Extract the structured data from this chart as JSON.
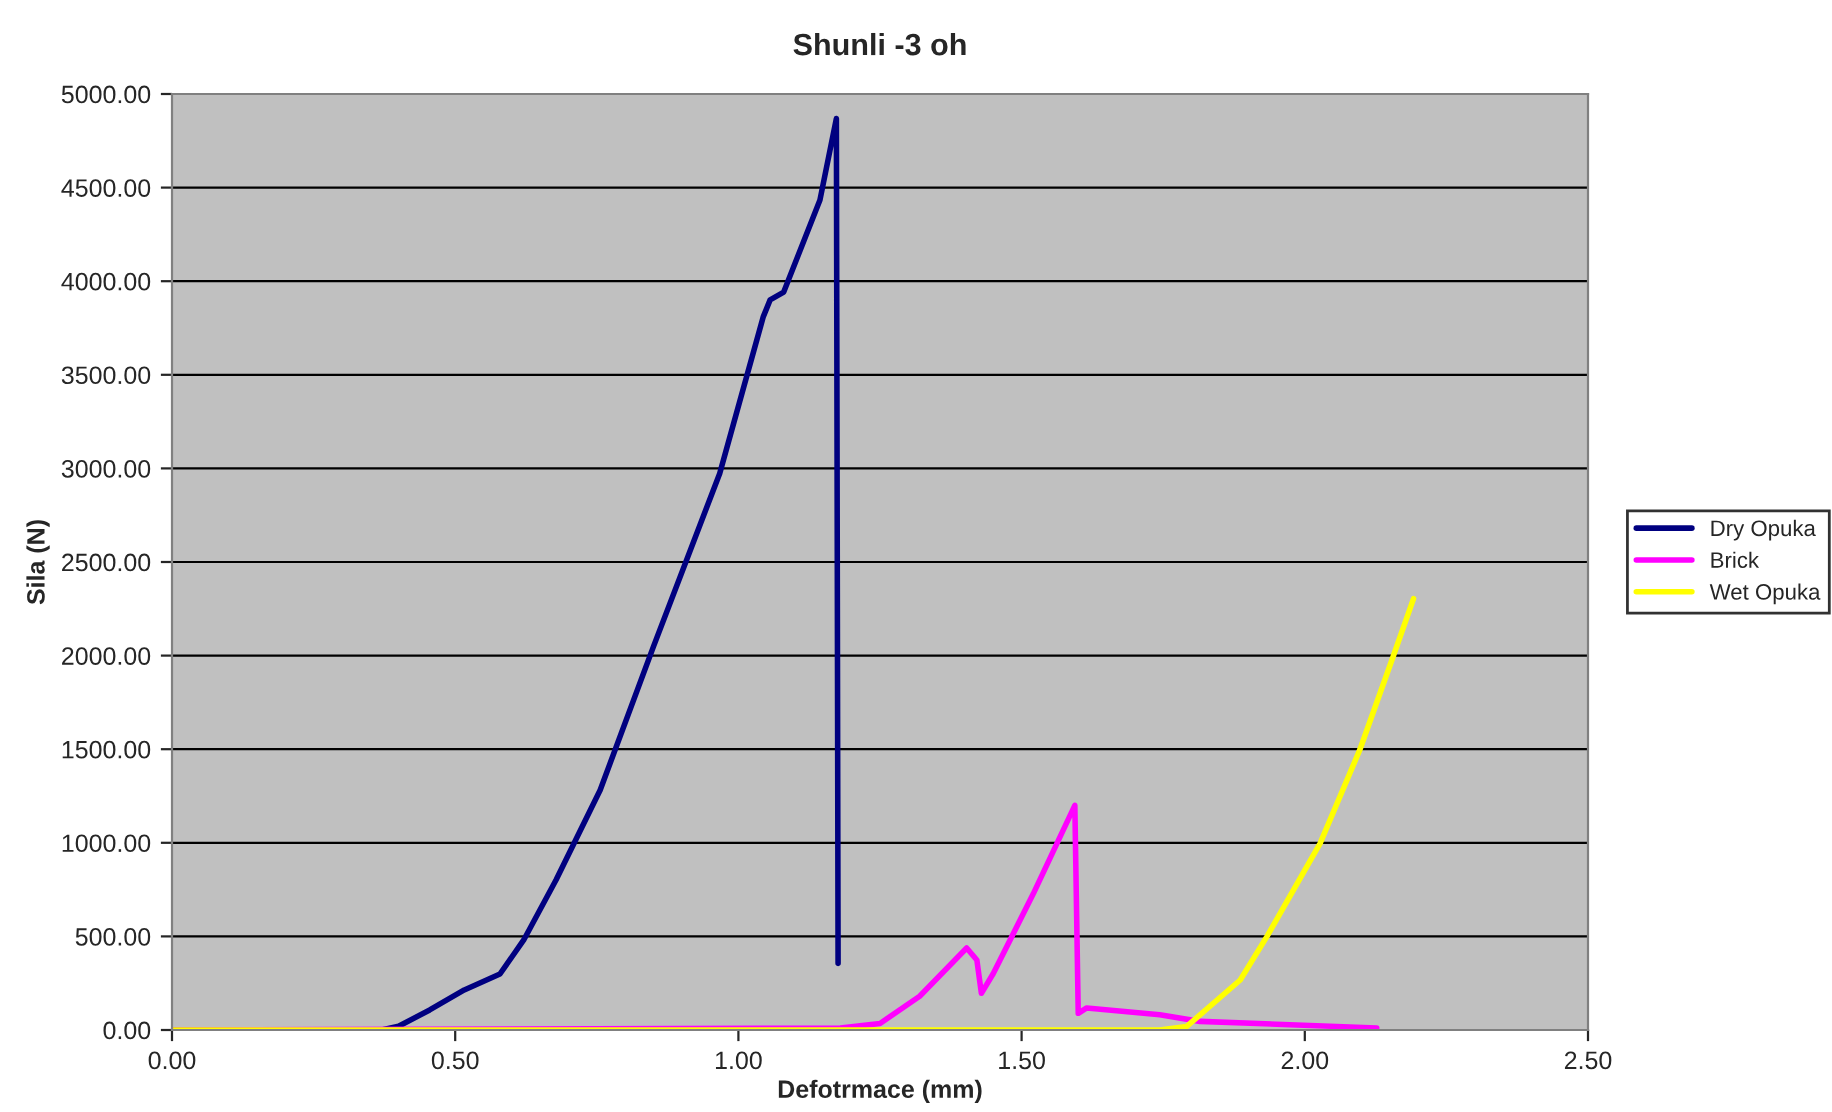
{
  "chart_data": {
    "type": "line",
    "title": "Shunli -3 oh",
    "xlabel": "Defotrmace (mm)",
    "ylabel": "Sila (N)",
    "xlim": [
      0,
      2.5
    ],
    "ylim": [
      0,
      5000
    ],
    "xticks": [
      {
        "value": 0,
        "label": "0.00"
      },
      {
        "value": 0.5,
        "label": "0.50"
      },
      {
        "value": 1,
        "label": "1.00"
      },
      {
        "value": 1.5,
        "label": "1.50"
      },
      {
        "value": 2,
        "label": "2.00"
      },
      {
        "value": 2.5,
        "label": "2.50"
      }
    ],
    "yticks": [
      {
        "value": 0,
        "label": "0.00"
      },
      {
        "value": 500,
        "label": "500.00"
      },
      {
        "value": 1000,
        "label": "1000.00"
      },
      {
        "value": 1500,
        "label": "1500.00"
      },
      {
        "value": 2000,
        "label": "2000.00"
      },
      {
        "value": 2500,
        "label": "2500.00"
      },
      {
        "value": 3000,
        "label": "3000.00"
      },
      {
        "value": 3500,
        "label": "3500.00"
      },
      {
        "value": 4000,
        "label": "4000.00"
      },
      {
        "value": 4500,
        "label": "4500.00"
      },
      {
        "value": 5000,
        "label": "5000.00"
      }
    ],
    "grid": "y",
    "legend": "right",
    "line_style": "solid",
    "marker": "none",
    "series": [
      {
        "name": "Dry Opuka",
        "color": "#000080",
        "x": [
          0,
          0.37,
          0.4,
          0.455,
          0.516,
          0.579,
          0.621,
          0.678,
          0.756,
          0.85,
          0.967,
          1.044,
          1.056,
          1.08,
          1.144,
          1.173,
          1.176
        ],
        "values": [
          0,
          0,
          20,
          107,
          214,
          299,
          481,
          801,
          1282,
          2048,
          2973,
          3811,
          3900,
          3942,
          4434,
          4869,
          356
        ]
      },
      {
        "name": "Brick",
        "color": "#ff00ff",
        "x": [
          0,
          1.18,
          1.25,
          1.32,
          1.403,
          1.421,
          1.429,
          1.45,
          1.521,
          1.594,
          1.6,
          1.615,
          1.744,
          1.815,
          2.127
        ],
        "values": [
          0,
          10,
          35,
          180,
          438,
          374,
          196,
          302,
          730,
          1200,
          89,
          118,
          82,
          46,
          11
        ]
      },
      {
        "name": "Wet Opuka",
        "color": "#ffff00",
        "x": [
          0,
          1.744,
          1.791,
          1.886,
          1.933,
          2.027,
          2.097,
          2.156,
          2.192
        ],
        "values": [
          0,
          0,
          18,
          267,
          499,
          997,
          1496,
          1995,
          2304
        ]
      }
    ]
  }
}
